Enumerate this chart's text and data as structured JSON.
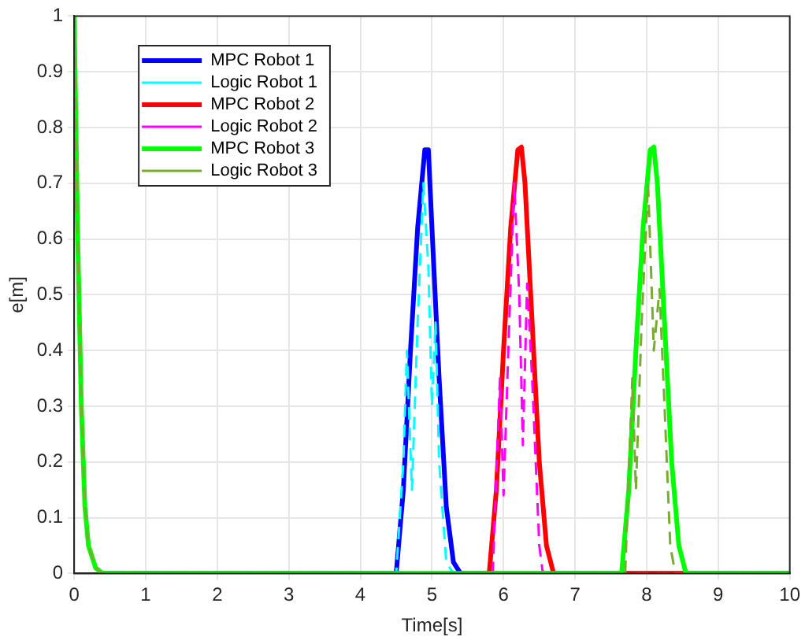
{
  "chart_data": {
    "type": "line",
    "xlabel": "Time[s]",
    "ylabel": "e[m]",
    "xlim": [
      0,
      10
    ],
    "ylim": [
      0,
      1
    ],
    "xticks": [
      0,
      1,
      2,
      3,
      4,
      5,
      6,
      7,
      8,
      9,
      10
    ],
    "yticks": [
      0,
      0.1,
      0.2,
      0.3,
      0.4,
      0.5,
      0.6,
      0.7,
      0.8,
      0.9,
      1
    ],
    "grid": true,
    "legend": "top left",
    "marker": "none",
    "series": [
      {
        "name": "MPC Robot 1",
        "color": "#0000ff",
        "line_style": "solid",
        "x": [
          0.4,
          4.5,
          4.6,
          4.7,
          4.8,
          4.9,
          4.95,
          5.0,
          5.1,
          5.2,
          5.3,
          5.4,
          10
        ],
        "values": [
          0,
          0,
          0.15,
          0.4,
          0.62,
          0.76,
          0.76,
          0.62,
          0.35,
          0.12,
          0.02,
          0,
          0
        ]
      },
      {
        "name": "Logic Robot 1",
        "color": "#00ffff",
        "line_style": "dashed",
        "x": [
          0.4,
          4.5,
          4.6,
          4.65,
          4.72,
          4.8,
          4.88,
          4.95,
          5.0,
          5.05,
          5.1,
          5.2,
          5.3,
          10
        ],
        "values": [
          0,
          0,
          0.2,
          0.4,
          0.15,
          0.45,
          0.7,
          0.55,
          0.3,
          0.45,
          0.2,
          0.02,
          0,
          0
        ]
      },
      {
        "name": "MPC Robot 2",
        "color": "#ff0000",
        "line_style": "solid",
        "x": [
          0.4,
          5.8,
          5.9,
          6.0,
          6.1,
          6.2,
          6.25,
          6.3,
          6.4,
          6.5,
          6.6,
          6.7,
          10
        ],
        "values": [
          0,
          0,
          0.15,
          0.4,
          0.62,
          0.76,
          0.765,
          0.7,
          0.45,
          0.2,
          0.05,
          0,
          0
        ]
      },
      {
        "name": "Logic Robot 2",
        "color": "#ff00ff",
        "line_style": "dashed",
        "x": [
          0.4,
          5.85,
          5.95,
          6.0,
          6.08,
          6.15,
          6.22,
          6.27,
          6.33,
          6.4,
          6.5,
          6.55,
          10
        ],
        "values": [
          0,
          0,
          0.35,
          0.14,
          0.45,
          0.7,
          0.5,
          0.23,
          0.52,
          0.35,
          0.05,
          0,
          0
        ]
      },
      {
        "name": "MPC Robot 3",
        "color": "#00ff00",
        "line_style": "solid",
        "x": [
          0,
          0.05,
          0.1,
          0.15,
          0.2,
          0.3,
          0.4,
          7.65,
          7.75,
          7.85,
          7.95,
          8.05,
          8.1,
          8.15,
          8.25,
          8.35,
          8.45,
          8.55,
          10
        ],
        "values": [
          1,
          0.6,
          0.3,
          0.12,
          0.05,
          0.01,
          0,
          0,
          0.15,
          0.4,
          0.62,
          0.76,
          0.765,
          0.7,
          0.45,
          0.2,
          0.05,
          0,
          0
        ]
      },
      {
        "name": "Logic Robot 3",
        "color": "#77ac30",
        "line_style": "dashed",
        "x": [
          0,
          0.05,
          0.1,
          0.15,
          0.2,
          0.3,
          0.4,
          7.7,
          7.8,
          7.85,
          7.93,
          8.02,
          8.1,
          8.18,
          8.25,
          8.33,
          8.4,
          10
        ],
        "values": [
          1,
          0.6,
          0.3,
          0.12,
          0.05,
          0.01,
          0,
          0,
          0.35,
          0.15,
          0.45,
          0.7,
          0.4,
          0.51,
          0.3,
          0.05,
          0,
          0
        ]
      }
    ]
  }
}
